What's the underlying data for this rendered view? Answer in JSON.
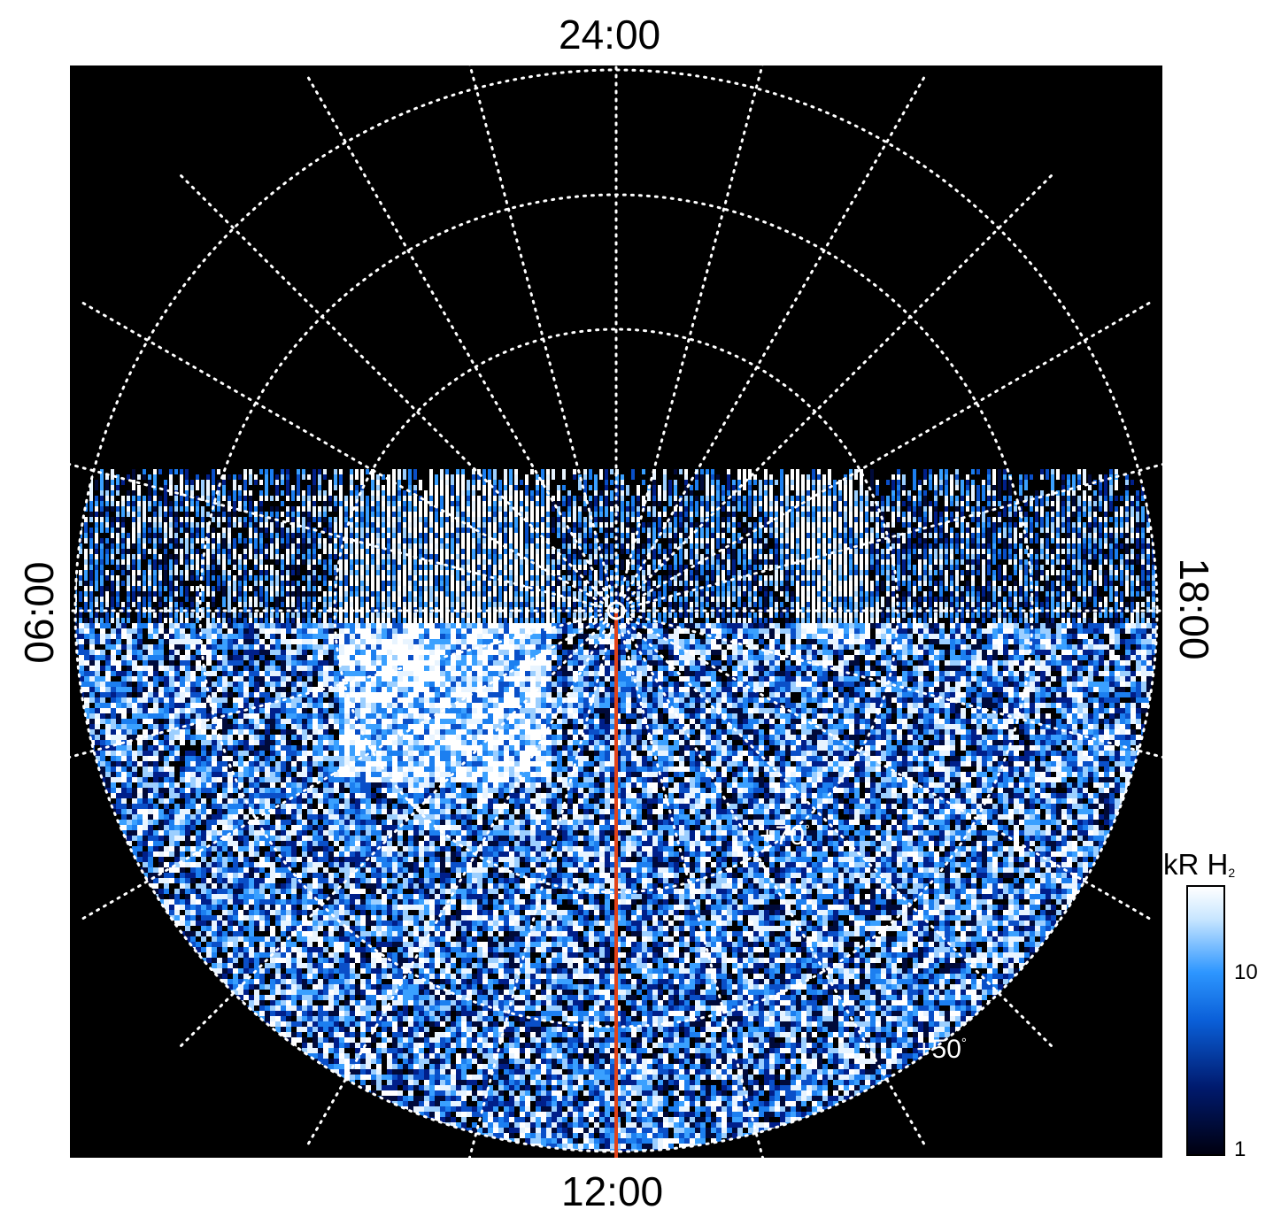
{
  "figure": {
    "local_time_labels": {
      "top": "24:00",
      "bottom": "12:00",
      "left": "06:00",
      "right": "18:00"
    },
    "latitude_labels": {
      "inner": "+70",
      "outer": "+50",
      "degree_symbol": "°"
    },
    "colorbar": {
      "title_main": "kR H",
      "title_subscript": "2",
      "tick_10": "10",
      "tick_1": "1",
      "scale": "log",
      "range_kR": [
        1,
        25
      ],
      "colors": [
        "#000010",
        "#001a6e",
        "#0a5fd8",
        "#2d96ff",
        "#c8e6ff",
        "#ffffff"
      ]
    },
    "colors": {
      "background": "#000000",
      "grid": "#ffffff",
      "meridian_line": "#e0431a"
    }
  }
}
